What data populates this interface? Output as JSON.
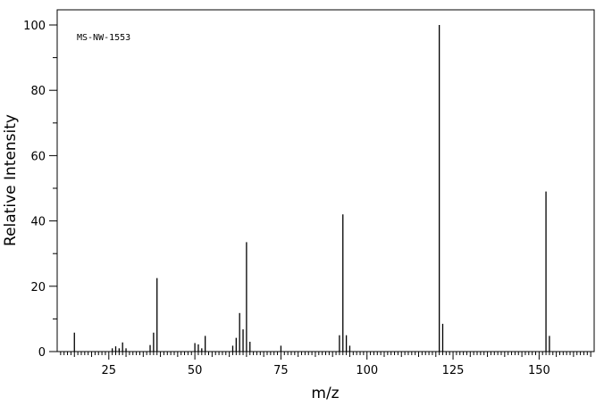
{
  "chart_data": {
    "type": "bar",
    "annotation": "MS-NW-1553",
    "xlabel": "m/z",
    "ylabel": "Relative Intensity",
    "xlim": [
      10,
      166
    ],
    "ylim": [
      0,
      105
    ],
    "x_ticks": [
      25,
      50,
      75,
      100,
      125,
      150
    ],
    "y_ticks": [
      0,
      20,
      40,
      60,
      80,
      100
    ],
    "grid": false,
    "series": [
      {
        "peaks": [
          {
            "mz": 15,
            "intensity": 5.8
          },
          {
            "mz": 26,
            "intensity": 1.0
          },
          {
            "mz": 27,
            "intensity": 1.6
          },
          {
            "mz": 28,
            "intensity": 1.0
          },
          {
            "mz": 29,
            "intensity": 2.8
          },
          {
            "mz": 30,
            "intensity": 1.0
          },
          {
            "mz": 37,
            "intensity": 2.0
          },
          {
            "mz": 38,
            "intensity": 5.8
          },
          {
            "mz": 39,
            "intensity": 22.5
          },
          {
            "mz": 50,
            "intensity": 2.6
          },
          {
            "mz": 51,
            "intensity": 2.2
          },
          {
            "mz": 52,
            "intensity": 1.0
          },
          {
            "mz": 53,
            "intensity": 4.8
          },
          {
            "mz": 61,
            "intensity": 1.8
          },
          {
            "mz": 62,
            "intensity": 4.2
          },
          {
            "mz": 63,
            "intensity": 11.8
          },
          {
            "mz": 64,
            "intensity": 6.8
          },
          {
            "mz": 65,
            "intensity": 33.5
          },
          {
            "mz": 66,
            "intensity": 3.0
          },
          {
            "mz": 75,
            "intensity": 1.8
          },
          {
            "mz": 92,
            "intensity": 5.0
          },
          {
            "mz": 93,
            "intensity": 42.0
          },
          {
            "mz": 94,
            "intensity": 5.0
          },
          {
            "mz": 95,
            "intensity": 1.8
          },
          {
            "mz": 121,
            "intensity": 100.0
          },
          {
            "mz": 122,
            "intensity": 8.5
          },
          {
            "mz": 152,
            "intensity": 49.0
          },
          {
            "mz": 153,
            "intensity": 4.8
          }
        ]
      }
    ]
  }
}
